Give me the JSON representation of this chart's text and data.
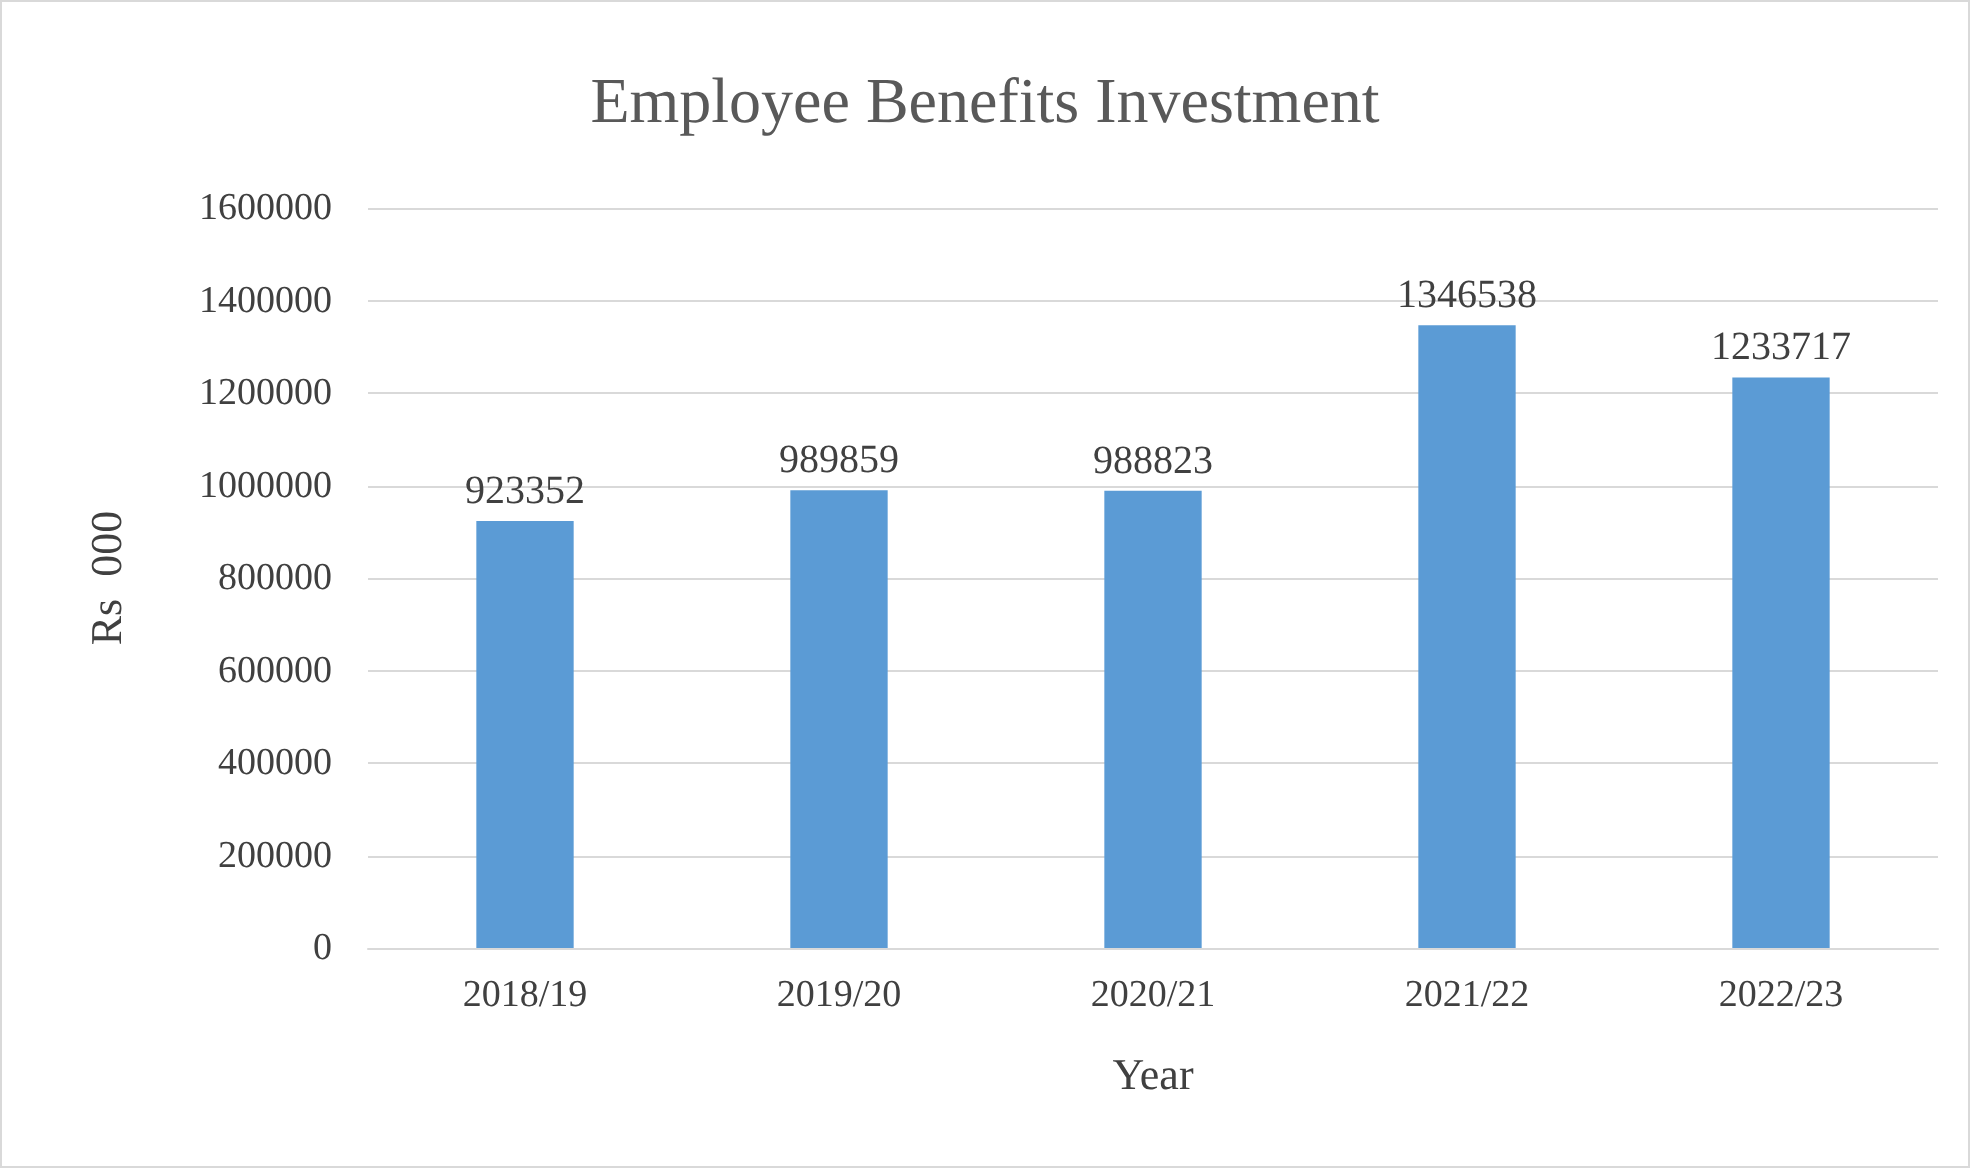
{
  "chart_data": {
    "type": "bar",
    "title": "Employee Benefits Investment",
    "xlabel": "Year",
    "ylabel": "Rs  000",
    "categories": [
      "2018/19",
      "2019/20",
      "2020/21",
      "2021/22",
      "2022/23"
    ],
    "values": [
      923352,
      989859,
      988823,
      1346538,
      1233717
    ],
    "color": "#5b9bd5",
    "ylim": [
      0,
      1600000
    ],
    "yticks": [
      0,
      200000,
      400000,
      600000,
      800000,
      1000000,
      1200000,
      1400000,
      1600000
    ],
    "grid": "y",
    "data_labels": true
  }
}
